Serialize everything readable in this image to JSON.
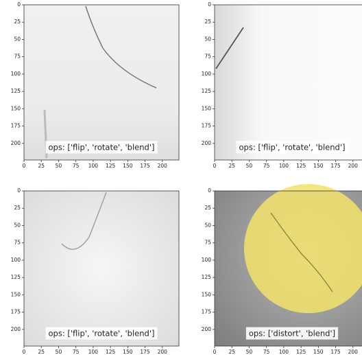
{
  "chart_data": [
    {
      "type": "image",
      "xlim": [
        0,
        224
      ],
      "ylim": [
        0,
        224
      ],
      "y_inverted": true,
      "xticks": [
        0,
        25,
        50,
        75,
        100,
        125,
        150,
        175,
        200
      ],
      "yticks": [
        0,
        25,
        50,
        75,
        100,
        125,
        150,
        175,
        200
      ],
      "annotation": "ops: ['flip', 'rotate', 'blend']"
    },
    {
      "type": "image",
      "xlim": [
        0,
        224
      ],
      "ylim": [
        0,
        224
      ],
      "y_inverted": true,
      "xticks": [
        0,
        25,
        50,
        75,
        100,
        125,
        150,
        175,
        200
      ],
      "yticks": [
        0,
        25,
        50,
        75,
        100,
        125,
        150,
        175,
        200
      ],
      "annotation": "ops: ['flip', 'rotate', 'blend']"
    },
    {
      "type": "image",
      "xlim": [
        0,
        224
      ],
      "ylim": [
        0,
        224
      ],
      "y_inverted": true,
      "xticks": [
        0,
        25,
        50,
        75,
        100,
        125,
        150,
        175,
        200
      ],
      "yticks": [
        0,
        25,
        50,
        75,
        100,
        125,
        150,
        175,
        200
      ],
      "annotation": "ops: ['flip', 'rotate', 'blend']"
    },
    {
      "type": "image",
      "xlim": [
        0,
        224
      ],
      "ylim": [
        0,
        224
      ],
      "y_inverted": true,
      "xticks": [
        0,
        25,
        50,
        75,
        100,
        125,
        150,
        175,
        200
      ],
      "yticks": [
        0,
        25,
        50,
        75,
        100,
        125,
        150,
        175,
        200
      ],
      "annotation": "ops: ['distort', 'blend']"
    }
  ]
}
